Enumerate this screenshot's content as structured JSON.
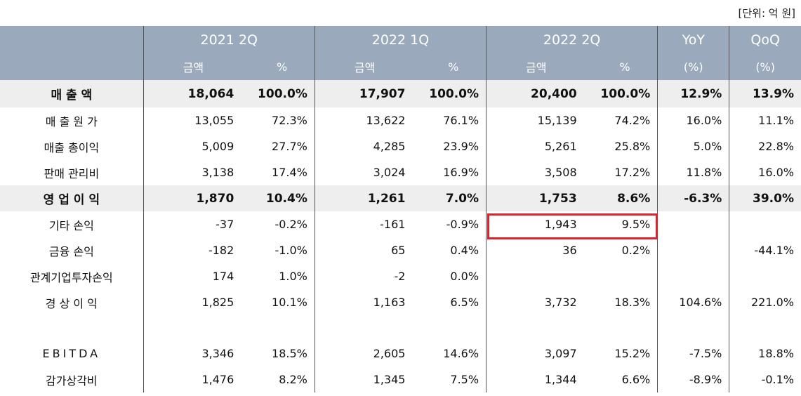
{
  "unit_note": "[단위: 억 원]",
  "header": {
    "periods": [
      "2021 2Q",
      "2022 1Q",
      "2022 2Q"
    ],
    "yoy": "YoY",
    "qoq": "QoQ",
    "amount": "금액",
    "percent": "%",
    "yoy_sub": "(%)",
    "qoq_sub": "(%)"
  },
  "rows": [
    {
      "label": "매 출 액",
      "a1": "18,064",
      "p1": "100.0%",
      "a2": "17,907",
      "p2": "100.0%",
      "a3": "20,400",
      "p3": "100.0%",
      "yoy": "12.9%",
      "qoq": "13.9%"
    },
    {
      "label": "매 출 원 가",
      "a1": "13,055",
      "p1": "72.3%",
      "a2": "13,622",
      "p2": "76.1%",
      "a3": "15,139",
      "p3": "74.2%",
      "yoy": "16.0%",
      "qoq": "11.1%"
    },
    {
      "label": "매출 총이익",
      "a1": "5,009",
      "p1": "27.7%",
      "a2": "4,285",
      "p2": "23.9%",
      "a3": "5,261",
      "p3": "25.8%",
      "yoy": "5.0%",
      "qoq": "22.8%"
    },
    {
      "label": "판매 관리비",
      "a1": "3,138",
      "p1": "17.4%",
      "a2": "3,024",
      "p2": "16.9%",
      "a3": "3,508",
      "p3": "17.2%",
      "yoy": "11.8%",
      "qoq": "16.0%"
    },
    {
      "label": "영 업 이 익",
      "a1": "1,870",
      "p1": "10.4%",
      "a2": "1,261",
      "p2": "7.0%",
      "a3": "1,753",
      "p3": "8.6%",
      "yoy": "-6.3%",
      "qoq": "39.0%"
    },
    {
      "label": "기타 손익",
      "a1": "-37",
      "p1": "-0.2%",
      "a2": "-161",
      "p2": "-0.9%",
      "a3": "1,943",
      "p3": "9.5%",
      "yoy": "",
      "qoq": ""
    },
    {
      "label": "금융 손익",
      "a1": "-182",
      "p1": "-1.0%",
      "a2": "65",
      "p2": "0.4%",
      "a3": "36",
      "p3": "0.2%",
      "yoy": "",
      "qoq": "-44.1%"
    },
    {
      "label": "관계기업투자손익",
      "a1": "174",
      "p1": "1.0%",
      "a2": "-2",
      "p2": "0.0%",
      "a3": "",
      "p3": "",
      "yoy": "",
      "qoq": ""
    },
    {
      "label": "경 상 이 익",
      "a1": "1,825",
      "p1": "10.1%",
      "a2": "1,163",
      "p2": "6.5%",
      "a3": "3,732",
      "p3": "18.3%",
      "yoy": "104.6%",
      "qoq": "221.0%"
    },
    {
      "label": "EBITDA",
      "a1": "3,346",
      "p1": "18.5%",
      "a2": "2,605",
      "p2": "14.6%",
      "a3": "3,097",
      "p3": "15.2%",
      "yoy": "-7.5%",
      "qoq": "18.8%"
    },
    {
      "label": "감가상각비",
      "a1": "1,476",
      "p1": "8.2%",
      "a2": "1,345",
      "p2": "7.5%",
      "a3": "1,344",
      "p3": "6.6%",
      "yoy": "-8.9%",
      "qoq": "-0.1%"
    }
  ],
  "colors": {
    "header_bg": "#9aa9bb",
    "shaded_row_bg": "#eeeeee",
    "highlight_border": "#e0202a"
  }
}
